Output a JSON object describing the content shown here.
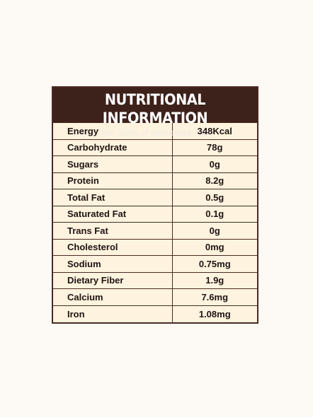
{
  "header": {
    "title": "NUTRITIONAL INFORMATION",
    "subtitle": "(per 100g of uncooked rice)"
  },
  "rows": [
    {
      "nutrient": "Energy",
      "value": "348Kcal"
    },
    {
      "nutrient": "Carbohydrate",
      "value": "78g"
    },
    {
      "nutrient": "Sugars",
      "value": "0g"
    },
    {
      "nutrient": "Protein",
      "value": "8.2g"
    },
    {
      "nutrient": "Total Fat",
      "value": "0.5g"
    },
    {
      "nutrient": "Saturated Fat",
      "value": "0.1g"
    },
    {
      "nutrient": "Trans Fat",
      "value": "0g"
    },
    {
      "nutrient": "Cholesterol",
      "value": "0mg"
    },
    {
      "nutrient": "Sodium",
      "value": "0.75mg"
    },
    {
      "nutrient": "Dietary Fiber",
      "value": "1.9g"
    },
    {
      "nutrient": "Calcium",
      "value": "7.6mg"
    },
    {
      "nutrient": "Iron",
      "value": "1.08mg"
    }
  ],
  "colors": {
    "header_bg": "#3d211b",
    "panel_bg": "#fdf3de",
    "border": "#4a2a22",
    "page_bg": "#fdfaf5"
  }
}
